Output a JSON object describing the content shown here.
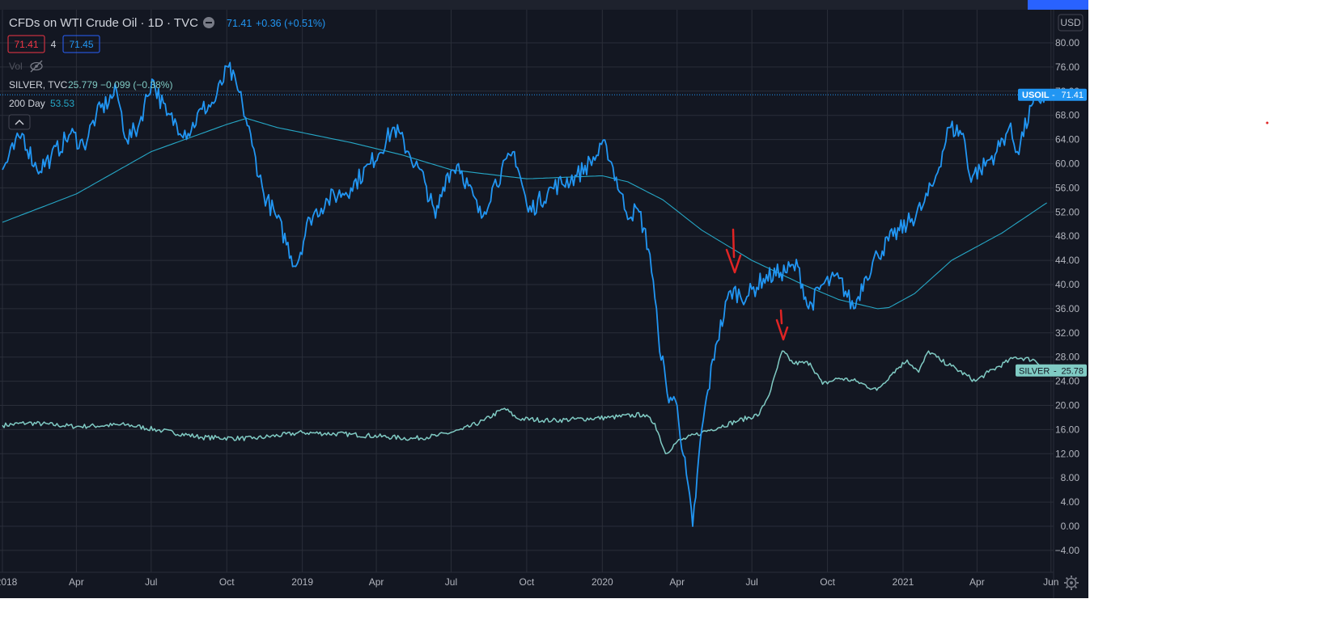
{
  "header": {
    "symbol_title": "CFDs on WTI Crude Oil · 1D · TVC",
    "last_price": "71.41",
    "change": "+0.36 (+0.51%)",
    "bid": "71.41",
    "spread": "4",
    "ask": "71.45",
    "vol_label": "Vol",
    "compare_label": "SILVER, TVC",
    "compare_values": "25.779 −0.099 (−0.38%)",
    "ma_label": "200 Day",
    "ma_value": "53.53"
  },
  "axis": {
    "currency": "USD"
  },
  "badges": {
    "usoil_name": "USOIL",
    "usoil_value": "71.41",
    "silver_name": "SILVER",
    "silver_value": "25.78"
  },
  "colors": {
    "background": "#131722",
    "oil": "#2196f3",
    "silver": "#80cbc4",
    "ma": "#26a7c6",
    "annotation": "#e02424",
    "grid": "#2a2e39",
    "text": "#b2b5be"
  },
  "chart_data": {
    "type": "line",
    "title": "CFDs on WTI Crude Oil · 1D · TVC",
    "ylabel": "USD",
    "ylim": [
      -6,
      84
    ],
    "grid": true,
    "x_ticks": [
      "2018",
      "Apr",
      "Jul",
      "Oct",
      "2019",
      "Apr",
      "Jul",
      "Oct",
      "2020",
      "Apr",
      "Jul",
      "Oct",
      "2021",
      "Apr",
      "Jun"
    ],
    "y_ticks": [
      "80.00",
      "76.00",
      "72.00",
      "68.00",
      "64.00",
      "60.00",
      "56.00",
      "52.00",
      "48.00",
      "44.00",
      "40.00",
      "36.00",
      "32.00",
      "28.00",
      "24.00",
      "20.00",
      "16.00",
      "12.00",
      "8.00",
      "4.00",
      "0.00",
      "−4.00"
    ],
    "series": [
      {
        "name": "USOIL",
        "color": "#2196f3",
        "points": [
          [
            "2018-01-01",
            59
          ],
          [
            "2018-01-25",
            65
          ],
          [
            "2018-02-12",
            59
          ],
          [
            "2018-03-01",
            61
          ],
          [
            "2018-03-25",
            65
          ],
          [
            "2018-04-10",
            63
          ],
          [
            "2018-04-25",
            68
          ],
          [
            "2018-05-20",
            72
          ],
          [
            "2018-06-01",
            64
          ],
          [
            "2018-06-15",
            66
          ],
          [
            "2018-07-02",
            74
          ],
          [
            "2018-07-20",
            68
          ],
          [
            "2018-08-15",
            65
          ],
          [
            "2018-09-01",
            69
          ],
          [
            "2018-09-15",
            70
          ],
          [
            "2018-10-03",
            76
          ],
          [
            "2018-10-20",
            70
          ],
          [
            "2018-11-01",
            63
          ],
          [
            "2018-11-15",
            55
          ],
          [
            "2018-12-01",
            51
          ],
          [
            "2018-12-24",
            43
          ],
          [
            "2019-01-10",
            51
          ],
          [
            "2019-02-01",
            54
          ],
          [
            "2019-03-01",
            56
          ],
          [
            "2019-03-25",
            60
          ],
          [
            "2019-04-23",
            66
          ],
          [
            "2019-05-10",
            62
          ],
          [
            "2019-05-30",
            57
          ],
          [
            "2019-06-12",
            51
          ],
          [
            "2019-06-25",
            58
          ],
          [
            "2019-07-10",
            60
          ],
          [
            "2019-08-07",
            51
          ],
          [
            "2019-08-20",
            56
          ],
          [
            "2019-09-16",
            62
          ],
          [
            "2019-10-03",
            52
          ],
          [
            "2019-11-01",
            56
          ],
          [
            "2019-12-01",
            58
          ],
          [
            "2020-01-06",
            63
          ],
          [
            "2020-01-30",
            52
          ],
          [
            "2020-02-15",
            52
          ],
          [
            "2020-02-28",
            45
          ],
          [
            "2020-03-09",
            32
          ],
          [
            "2020-03-20",
            22
          ],
          [
            "2020-04-01",
            20
          ],
          [
            "2020-04-20",
            0
          ],
          [
            "2020-05-01",
            16
          ],
          [
            "2020-05-18",
            30
          ],
          [
            "2020-06-05",
            39
          ],
          [
            "2020-06-25",
            38
          ],
          [
            "2020-07-15",
            41
          ],
          [
            "2020-08-05",
            42
          ],
          [
            "2020-08-26",
            43
          ],
          [
            "2020-09-08",
            36
          ],
          [
            "2020-09-25",
            40
          ],
          [
            "2020-10-15",
            41
          ],
          [
            "2020-11-02",
            36
          ],
          [
            "2020-11-15",
            41
          ],
          [
            "2020-12-01",
            45
          ],
          [
            "2020-12-20",
            48
          ],
          [
            "2021-01-06",
            50
          ],
          [
            "2021-01-25",
            53
          ],
          [
            "2021-02-08",
            57
          ],
          [
            "2021-02-26",
            66
          ],
          [
            "2021-03-15",
            65
          ],
          [
            "2021-03-23",
            58
          ],
          [
            "2021-04-05",
            59
          ],
          [
            "2021-04-25",
            62
          ],
          [
            "2021-05-10",
            66
          ],
          [
            "2021-05-20",
            62
          ],
          [
            "2021-06-08",
            70
          ],
          [
            "2021-06-25",
            71.41
          ]
        ]
      },
      {
        "name": "SILVER",
        "color": "#80cbc4",
        "points": [
          [
            "2018-01-01",
            16.7
          ],
          [
            "2018-02-01",
            17.1
          ],
          [
            "2018-04-01",
            16.5
          ],
          [
            "2018-06-01",
            16.8
          ],
          [
            "2018-07-15",
            15.8
          ],
          [
            "2018-09-01",
            14.7
          ],
          [
            "2018-11-01",
            14.5
          ],
          [
            "2019-01-01",
            15.5
          ],
          [
            "2019-03-01",
            15.2
          ],
          [
            "2019-05-15",
            14.5
          ],
          [
            "2019-06-15",
            15.0
          ],
          [
            "2019-07-15",
            16.0
          ],
          [
            "2019-08-10",
            17.5
          ],
          [
            "2019-09-04",
            19.5
          ],
          [
            "2019-09-20",
            17.8
          ],
          [
            "2019-11-01",
            17.5
          ],
          [
            "2020-01-10",
            18.0
          ],
          [
            "2020-02-20",
            18.5
          ],
          [
            "2020-03-05",
            17.0
          ],
          [
            "2020-03-18",
            12.0
          ],
          [
            "2020-04-01",
            14.0
          ],
          [
            "2020-05-01",
            15.5
          ],
          [
            "2020-06-15",
            17.5
          ],
          [
            "2020-07-10",
            18.5
          ],
          [
            "2020-07-24",
            22.5
          ],
          [
            "2020-08-07",
            29.0
          ],
          [
            "2020-08-20",
            27.0
          ],
          [
            "2020-09-10",
            27.0
          ],
          [
            "2020-09-25",
            23.5
          ],
          [
            "2020-10-15",
            24.5
          ],
          [
            "2020-11-05",
            24.0
          ],
          [
            "2020-11-30",
            22.5
          ],
          [
            "2020-12-20",
            25.5
          ],
          [
            "2021-01-06",
            27.5
          ],
          [
            "2021-01-20",
            25.5
          ],
          [
            "2021-02-01",
            29.0
          ],
          [
            "2021-02-15",
            27.5
          ],
          [
            "2021-03-01",
            26.5
          ],
          [
            "2021-03-30",
            24.0
          ],
          [
            "2021-04-15",
            25.5
          ],
          [
            "2021-05-18",
            28.0
          ],
          [
            "2021-06-10",
            27.5
          ],
          [
            "2021-06-25",
            25.78
          ]
        ]
      },
      {
        "name": "200 Day",
        "color": "#26a7c6",
        "points": [
          [
            "2018-01-01",
            50.3
          ],
          [
            "2018-04-01",
            55
          ],
          [
            "2018-07-01",
            62
          ],
          [
            "2018-10-01",
            66.5
          ],
          [
            "2018-10-25",
            67.5
          ],
          [
            "2018-12-01",
            66
          ],
          [
            "2019-03-01",
            63.5
          ],
          [
            "2019-05-01",
            61.5
          ],
          [
            "2019-07-01",
            59
          ],
          [
            "2019-10-01",
            57.5
          ],
          [
            "2020-01-01",
            58
          ],
          [
            "2020-02-01",
            57
          ],
          [
            "2020-03-15",
            54
          ],
          [
            "2020-05-01",
            49
          ],
          [
            "2020-07-01",
            44
          ],
          [
            "2020-09-01",
            40
          ],
          [
            "2020-10-15",
            37.5
          ],
          [
            "2020-12-01",
            36
          ],
          [
            "2020-12-15",
            36.2
          ],
          [
            "2021-01-15",
            38.5
          ],
          [
            "2021-03-01",
            44
          ],
          [
            "2021-05-01",
            48.5
          ],
          [
            "2021-06-25",
            53.53
          ]
        ]
      }
    ]
  }
}
